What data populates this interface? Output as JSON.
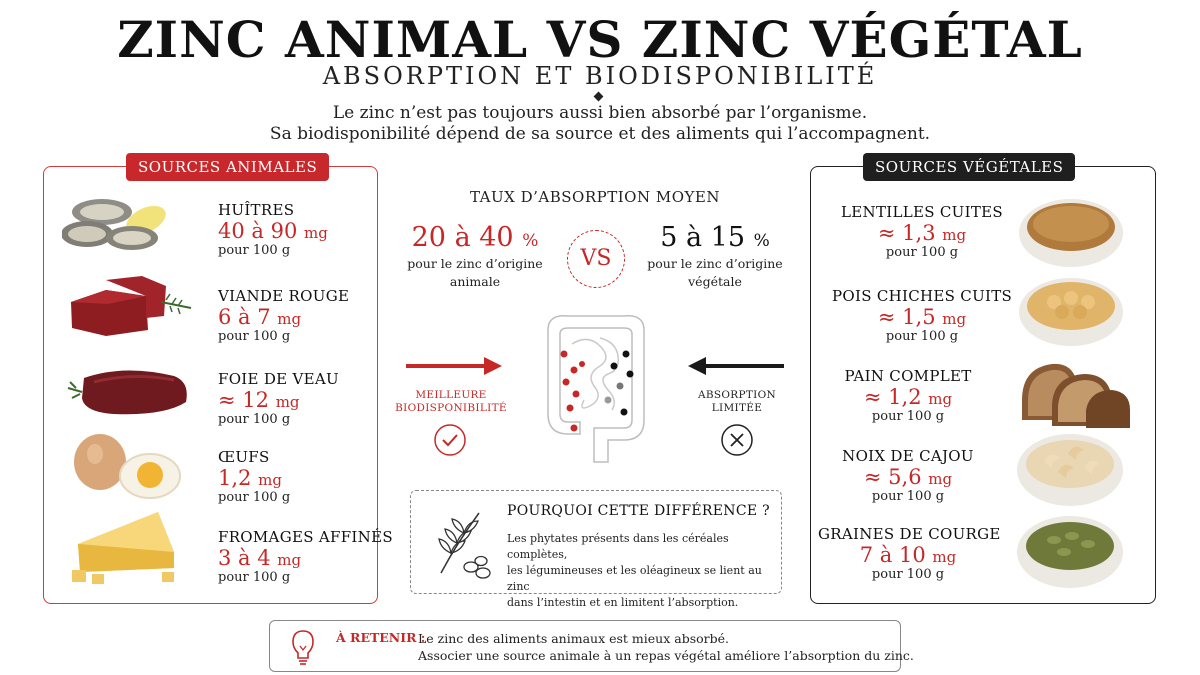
{
  "header": {
    "title": "ZINC ANIMAL VS ZINC VÉGÉTAL",
    "subtitle": "ABSORPTION ET BIODISPONIBILITÉ",
    "intro_line1": "Le zinc n’est pas toujours aussi bien absorbé par l’organisme.",
    "intro_line2": "Sa biodisponibilité dépend de sa source et des aliments qui l’accompagnent."
  },
  "animal": {
    "tag": "SOURCES ANIMALES",
    "items": [
      {
        "name": "HUÎTRES",
        "value": "40 à 90",
        "unit": "mg",
        "per": "pour 100 g",
        "icon": "oyster-icon"
      },
      {
        "name": "VIANDE ROUGE",
        "value": "6 à 7",
        "unit": "mg",
        "per": "pour 100 g",
        "icon": "red-meat-icon"
      },
      {
        "name": "FOIE DE VEAU",
        "value": "≈ 12",
        "unit": "mg",
        "per": "pour 100 g",
        "icon": "liver-icon"
      },
      {
        "name": "ŒUFS",
        "value": "1,2",
        "unit": "mg",
        "per": "pour 100 g",
        "icon": "egg-icon"
      },
      {
        "name": "FROMAGES AFFINÉS",
        "value": "3 à 4",
        "unit": "mg",
        "per": "pour 100 g",
        "icon": "cheese-icon"
      }
    ]
  },
  "vegetal": {
    "tag": "SOURCES VÉGÉTALES",
    "items": [
      {
        "name": "LENTILLES CUITES",
        "value": "≈ 1,3",
        "unit": "mg",
        "per": "pour 100 g",
        "icon": "lentils-icon"
      },
      {
        "name": "POIS CHICHES CUITS",
        "value": "≈ 1,5",
        "unit": "mg",
        "per": "pour 100 g",
        "icon": "chickpeas-icon"
      },
      {
        "name": "PAIN COMPLET",
        "value": "≈ 1,2",
        "unit": "mg",
        "per": "pour 100 g",
        "icon": "bread-icon"
      },
      {
        "name": "NOIX DE CAJOU",
        "value": "≈ 5,6",
        "unit": "mg",
        "per": "pour 100 g",
        "icon": "cashew-icon"
      },
      {
        "name": "GRAINES DE COURGE",
        "value": "7 à 10",
        "unit": "mg",
        "per": "pour 100 g",
        "icon": "pumpkin-seeds-icon"
      }
    ]
  },
  "absorption": {
    "heading": "TAUX D’ABSORPTION MOYEN",
    "animal_rate": "20 à 40",
    "animal_unit": "%",
    "animal_desc1": "pour le zinc d’origine",
    "animal_desc2": "animale",
    "vs": "VS",
    "vegetal_rate": "5 à 15",
    "vegetal_unit": "%",
    "vegetal_desc1": "pour le zinc d’origine",
    "vegetal_desc2": "végétale",
    "left_label1": "MEILLEURE",
    "left_label2": "BIODISPONIBILITÉ",
    "right_label1": "ABSORPTION",
    "right_label2": "LIMITÉE"
  },
  "why": {
    "title": "POURQUOI CETTE DIFFÉRENCE ?",
    "line1": "Les phytates présents dans les céréales complètes,",
    "line2": "les légumineuses et les oléagineux se lient au zinc",
    "line3": "dans l’intestin et en limitent l’absorption."
  },
  "retain": {
    "label": "À RETENIR :",
    "line1": "Le zinc des aliments animaux est mieux absorbé.",
    "line2": "Associer une source animale à un repas végétal améliore l’absorption du zinc."
  },
  "colors": {
    "accent_red": "#c62828",
    "dark": "#1f1f1f"
  }
}
